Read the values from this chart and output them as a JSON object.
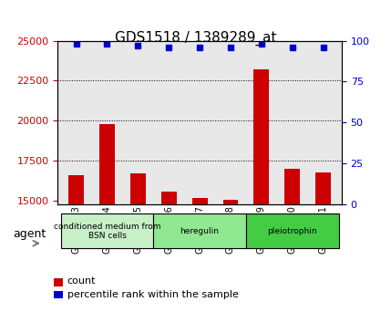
{
  "title": "GDS1518 / 1389289_at",
  "samples": [
    "GSM76383",
    "GSM76384",
    "GSM76385",
    "GSM76386",
    "GSM76387",
    "GSM76388",
    "GSM76389",
    "GSM76390",
    "GSM76391"
  ],
  "counts": [
    16600,
    19800,
    16700,
    15600,
    15200,
    15100,
    23200,
    17000,
    16800
  ],
  "percentiles": [
    98,
    98,
    97,
    96,
    96,
    96,
    98,
    96,
    96
  ],
  "ymin": 14800,
  "ymax": 25000,
  "yticks": [
    15000,
    17500,
    20000,
    22500,
    25000
  ],
  "y2min": 0,
  "y2max": 100,
  "y2ticks": [
    0,
    25,
    50,
    75,
    100
  ],
  "bar_color": "#cc0000",
  "dot_color": "#0000cc",
  "groups": [
    {
      "label": "conditioned medium from\nBSN cells",
      "start": 0,
      "end": 3,
      "color": "#c8f0c8"
    },
    {
      "label": "heregulin",
      "start": 3,
      "end": 6,
      "color": "#90e890"
    },
    {
      "label": "pleiotrophin",
      "start": 6,
      "end": 9,
      "color": "#44cc44"
    }
  ],
  "agent_label": "agent",
  "legend_count_label": "count",
  "legend_pct_label": "percentile rank within the sample",
  "bar_width": 0.5,
  "plot_bg": "#e8e8e8",
  "axis_label_color_left": "#cc0000",
  "axis_label_color_right": "#0000cc"
}
